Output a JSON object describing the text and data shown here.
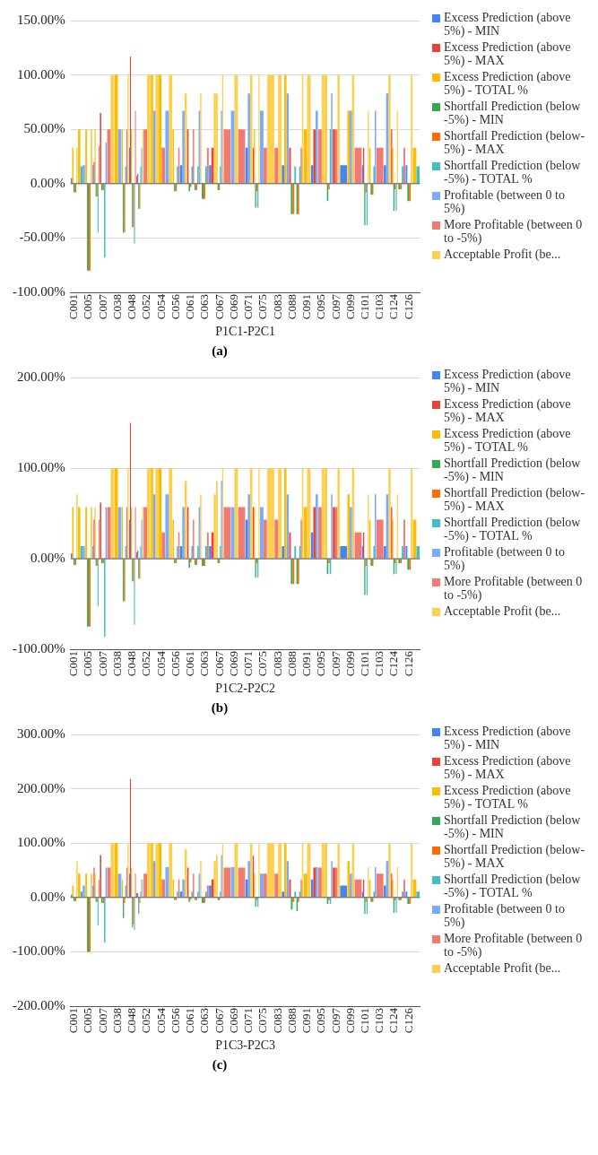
{
  "chart_data": [
    {
      "type": "bar",
      "xlabel": "P1C1-P2C1",
      "annotations": [
        "(a)"
      ],
      "legend": "right",
      "grid": "y",
      "ylim": [
        -100,
        150
      ],
      "yticks": [
        {
          "value": -100,
          "label": "-100.00%"
        },
        {
          "value": -50,
          "label": "-50.00%"
        },
        {
          "value": 0,
          "label": "0.00%"
        },
        {
          "value": 50,
          "label": "50.00%"
        },
        {
          "value": 100,
          "label": "100.00%"
        },
        {
          "value": 150,
          "label": "150.00%"
        }
      ],
      "categories": [
        "C001",
        null,
        "C005",
        null,
        "C007",
        null,
        "C038",
        null,
        "C048",
        null,
        "C052",
        null,
        "C054",
        null,
        "C056",
        null,
        "C061",
        null,
        "C063",
        null,
        "C067",
        null,
        "C069",
        null,
        "C071",
        null,
        "C075",
        null,
        "C083",
        null,
        "C088",
        null,
        "C091",
        null,
        "C095",
        null,
        "C097",
        null,
        "C099",
        null,
        "C101",
        null,
        "C103",
        null,
        "C124",
        null,
        "C126",
        null
      ],
      "series": [
        {
          "name": "Excess Prediction (above 5%) - MIN",
          "color": "#4285f4",
          "values": [
            5,
            null,
            null,
            17,
            null,
            null,
            null,
            null,
            33,
            7,
            null,
            null,
            null,
            null,
            null,
            17,
            null,
            null,
            null,
            17,
            null,
            null,
            null,
            null,
            33,
            null,
            null,
            null,
            null,
            17,
            null,
            null,
            null,
            17,
            null,
            null,
            null,
            17,
            null,
            null,
            17,
            null,
            null,
            17,
            null,
            null,
            17,
            null
          ]
        },
        {
          "name": "Excess Prediction (above 5%) - MAX",
          "color": "#ea4335",
          "values": [
            null,
            null,
            null,
            20,
            65,
            null,
            null,
            null,
            117,
            9,
            null,
            null,
            null,
            null,
            null,
            null,
            50,
            null,
            null,
            33,
            null,
            null,
            null,
            null,
            null,
            33,
            null,
            null,
            null,
            null,
            33,
            null,
            null,
            50,
            null,
            null,
            50,
            null,
            null,
            null,
            33,
            null,
            null,
            null,
            50,
            null,
            null,
            null
          ]
        },
        {
          "name": "Excess Prediction (above 5%) - TOTAL %",
          "color": "#fbbc04",
          "values": [
            33,
            50,
            50,
            50,
            null,
            null,
            100,
            50,
            50,
            null,
            null,
            100,
            100,
            null,
            50,
            null,
            null,
            null,
            null,
            null,
            83,
            null,
            null,
            null,
            null,
            50,
            null,
            null,
            null,
            100,
            null,
            null,
            50,
            null,
            null,
            100,
            null,
            null,
            67,
            null,
            null,
            33,
            null,
            null,
            33,
            null,
            null,
            33
          ]
        },
        {
          "name": "Shortfall Prediction (below -5%) - MIN",
          "color": "#34a853",
          "values": [
            -8,
            null,
            -80,
            -12,
            -6,
            null,
            null,
            -45,
            -40,
            -23,
            null,
            null,
            null,
            null,
            -7,
            null,
            -7,
            -6,
            -14,
            null,
            -6,
            null,
            null,
            null,
            null,
            -22,
            null,
            null,
            null,
            null,
            -28,
            -28,
            null,
            null,
            null,
            -16,
            null,
            null,
            null,
            null,
            -38,
            -10,
            null,
            null,
            -25,
            -5,
            -16,
            null
          ]
        },
        {
          "name": "Shortfall Prediction (below-5%) - MAX",
          "color": "#ff6d01",
          "values": [
            -8,
            null,
            -80,
            -12,
            -6,
            null,
            null,
            -45,
            -40,
            -23,
            null,
            null,
            null,
            null,
            -7,
            null,
            -3,
            -6,
            -14,
            null,
            -6,
            null,
            null,
            null,
            null,
            -7,
            null,
            null,
            null,
            null,
            -28,
            -28,
            null,
            null,
            null,
            -5,
            null,
            null,
            null,
            null,
            -8,
            -10,
            null,
            null,
            -5,
            -5,
            -16,
            null
          ]
        },
        {
          "name": "Shortfall Prediction (below -5%) - TOTAL %",
          "color": "#46bdc6",
          "values": [
            null,
            16,
            null,
            -45,
            -68,
            null,
            null,
            16,
            -55,
            16,
            null,
            null,
            null,
            null,
            16,
            null,
            16,
            16,
            16,
            null,
            16,
            null,
            null,
            null,
            null,
            -22,
            null,
            null,
            null,
            null,
            16,
            16,
            null,
            null,
            null,
            50,
            null,
            null,
            null,
            null,
            -38,
            16,
            null,
            null,
            -25,
            16,
            null,
            16
          ]
        },
        {
          "name": "Profitable (between 0 to 5%)",
          "color": "#7baaf7",
          "values": [
            null,
            17,
            null,
            null,
            38,
            null,
            50,
            null,
            null,
            33,
            null,
            67,
            null,
            67,
            null,
            67,
            null,
            67,
            null,
            null,
            67,
            null,
            67,
            null,
            83,
            null,
            67,
            null,
            null,
            83,
            null,
            null,
            null,
            67,
            null,
            83,
            null,
            null,
            67,
            null,
            null,
            67,
            null,
            83,
            null,
            null,
            null,
            null
          ]
        },
        {
          "name": "More Profitable (between 0 to -5%)",
          "color": "#f07b72",
          "values": [
            null,
            null,
            null,
            35,
            null,
            50,
            null,
            50,
            67,
            null,
            50,
            null,
            33,
            null,
            33,
            null,
            50,
            null,
            33,
            null,
            null,
            50,
            null,
            50,
            null,
            null,
            33,
            null,
            33,
            null,
            null,
            33,
            null,
            null,
            50,
            null,
            50,
            null,
            null,
            33,
            null,
            null,
            33,
            null,
            null,
            33,
            null,
            null
          ]
        },
        {
          "name": "Acceptable Profit (be...",
          "color": "#fcd04f",
          "values": [
            33,
            null,
            50,
            null,
            null,
            100,
            null,
            100,
            null,
            50,
            100,
            100,
            null,
            100,
            null,
            83,
            null,
            83,
            null,
            83,
            100,
            null,
            100,
            null,
            100,
            100,
            null,
            100,
            100,
            null,
            null,
            100,
            100,
            null,
            100,
            null,
            100,
            null,
            100,
            null,
            67,
            null,
            null,
            100,
            67,
            null,
            100,
            null
          ]
        }
      ]
    },
    {
      "type": "bar",
      "xlabel": "P1C2-P2C2",
      "annotations": [
        "(b)"
      ],
      "legend": "right",
      "grid": "y",
      "ylim": [
        -100,
        200
      ],
      "yticks": [
        {
          "value": -100,
          "label": "-100.00%"
        },
        {
          "value": 0,
          "label": "0.00%"
        },
        {
          "value": 100,
          "label": "100.00%"
        },
        {
          "value": 200,
          "label": "200.00%"
        }
      ],
      "categories": [
        "C001",
        null,
        "C005",
        null,
        "C007",
        null,
        "C038",
        null,
        "C048",
        null,
        "C052",
        null,
        "C054",
        null,
        "C056",
        null,
        "C061",
        null,
        "C063",
        null,
        "C067",
        null,
        "C069",
        null,
        "C071",
        null,
        "C075",
        null,
        "C083",
        null,
        "C088",
        null,
        "C091",
        null,
        "C095",
        null,
        "C097",
        null,
        "C099",
        null,
        "C101",
        null,
        "C103",
        null,
        "C124",
        null,
        "C126",
        null
      ],
      "series": [
        {
          "name": "Excess Prediction (above 5%) - MIN",
          "color": "#4285f4",
          "values": [
            6,
            null,
            null,
            14,
            null,
            null,
            null,
            null,
            43,
            7,
            null,
            null,
            null,
            null,
            null,
            14,
            null,
            null,
            null,
            14,
            null,
            null,
            null,
            null,
            43,
            null,
            null,
            null,
            null,
            14,
            null,
            null,
            null,
            29,
            null,
            null,
            null,
            14,
            null,
            null,
            14,
            null,
            null,
            14,
            null,
            null,
            14,
            null
          ]
        },
        {
          "name": "Excess Prediction (above 5%) - MAX",
          "color": "#ea4335",
          "values": [
            null,
            null,
            null,
            43,
            62,
            null,
            null,
            null,
            150,
            9,
            null,
            null,
            null,
            null,
            null,
            null,
            57,
            null,
            null,
            29,
            null,
            null,
            null,
            null,
            null,
            57,
            null,
            null,
            null,
            null,
            29,
            null,
            null,
            57,
            null,
            null,
            57,
            null,
            null,
            null,
            29,
            null,
            null,
            null,
            57,
            null,
            null,
            null
          ]
        },
        {
          "name": "Excess Prediction (above 5%) - TOTAL %",
          "color": "#fbbc04",
          "values": [
            57,
            57,
            57,
            57,
            null,
            null,
            100,
            57,
            57,
            null,
            null,
            100,
            100,
            null,
            43,
            null,
            null,
            null,
            null,
            null,
            86,
            null,
            null,
            null,
            null,
            57,
            null,
            null,
            null,
            100,
            null,
            null,
            57,
            null,
            null,
            100,
            null,
            null,
            71,
            null,
            null,
            43,
            null,
            null,
            43,
            null,
            null,
            43
          ]
        },
        {
          "name": "Shortfall Prediction (below -5%) - MIN",
          "color": "#34a853",
          "values": [
            -7,
            null,
            -75,
            -8,
            -5,
            null,
            null,
            -47,
            -25,
            -22,
            null,
            null,
            null,
            null,
            -5,
            null,
            -10,
            -7,
            -8,
            null,
            -5,
            null,
            null,
            null,
            null,
            -21,
            null,
            null,
            null,
            null,
            -28,
            -28,
            null,
            null,
            null,
            -17,
            null,
            null,
            null,
            null,
            -40,
            -8,
            null,
            null,
            -17,
            -5,
            -12,
            null
          ]
        },
        {
          "name": "Shortfall Prediction (below-5%) - MAX",
          "color": "#ff6d01",
          "values": [
            -7,
            null,
            -75,
            -8,
            -5,
            null,
            null,
            -47,
            -25,
            -22,
            null,
            null,
            null,
            null,
            -5,
            null,
            -4,
            -7,
            -8,
            null,
            -5,
            null,
            null,
            null,
            null,
            -5,
            null,
            null,
            null,
            null,
            -28,
            -28,
            null,
            null,
            null,
            -5,
            null,
            null,
            null,
            null,
            -8,
            -8,
            null,
            null,
            -5,
            -5,
            -12,
            null
          ]
        },
        {
          "name": "Shortfall Prediction (below -5%) - TOTAL %",
          "color": "#46bdc6",
          "values": [
            null,
            14,
            null,
            -53,
            -86,
            null,
            null,
            14,
            -73,
            14,
            null,
            null,
            null,
            null,
            14,
            null,
            14,
            14,
            14,
            null,
            14,
            null,
            null,
            null,
            null,
            -21,
            null,
            null,
            null,
            null,
            14,
            14,
            null,
            null,
            null,
            -17,
            null,
            null,
            null,
            null,
            -40,
            14,
            null,
            null,
            -17,
            14,
            null,
            14
          ]
        },
        {
          "name": "Profitable (between 0 to 5%)",
          "color": "#7baaf7",
          "values": [
            null,
            14,
            null,
            null,
            57,
            null,
            57,
            null,
            null,
            43,
            null,
            71,
            null,
            71,
            null,
            57,
            null,
            57,
            null,
            null,
            86,
            null,
            57,
            null,
            71,
            null,
            57,
            null,
            null,
            71,
            null,
            null,
            null,
            71,
            null,
            71,
            null,
            null,
            57,
            null,
            null,
            71,
            null,
            71,
            null,
            null,
            null,
            null
          ]
        },
        {
          "name": "More Profitable (between 0 to -5%)",
          "color": "#f07b72",
          "values": [
            null,
            null,
            null,
            43,
            null,
            57,
            null,
            57,
            57,
            null,
            57,
            null,
            29,
            null,
            29,
            null,
            43,
            null,
            29,
            null,
            null,
            57,
            null,
            57,
            null,
            null,
            43,
            null,
            43,
            null,
            null,
            43,
            null,
            null,
            57,
            null,
            57,
            null,
            null,
            29,
            null,
            null,
            43,
            null,
            null,
            43,
            null,
            null
          ]
        },
        {
          "name": "Acceptable Profit (be...",
          "color": "#fcd04f",
          "values": [
            71,
            null,
            57,
            null,
            null,
            100,
            null,
            100,
            null,
            57,
            100,
            100,
            null,
            100,
            null,
            86,
            null,
            71,
            null,
            71,
            100,
            null,
            100,
            null,
            100,
            100,
            null,
            100,
            100,
            null,
            null,
            100,
            100,
            null,
            100,
            null,
            100,
            null,
            100,
            null,
            71,
            null,
            null,
            100,
            71,
            null,
            100,
            null
          ]
        }
      ]
    },
    {
      "type": "bar",
      "xlabel": "P1C3-P2C3",
      "annotations": [
        "(c)"
      ],
      "legend": "right",
      "grid": "y",
      "ylim": [
        -200,
        300
      ],
      "yticks": [
        {
          "value": -200,
          "label": "-200.00%"
        },
        {
          "value": -100,
          "label": "-100.00%"
        },
        {
          "value": 0,
          "label": "0.00%"
        },
        {
          "value": 100,
          "label": "100.00%"
        },
        {
          "value": 200,
          "label": "200.00%"
        },
        {
          "value": 300,
          "label": "300.00%"
        }
      ],
      "categories": [
        "C001",
        null,
        "C005",
        null,
        "C007",
        null,
        "C038",
        null,
        "C048",
        null,
        "C052",
        null,
        "C054",
        null,
        "C056",
        null,
        "C061",
        null,
        "C063",
        null,
        "C067",
        null,
        "C069",
        null,
        "C071",
        null,
        "C075",
        null,
        "C083",
        null,
        "C088",
        null,
        "C091",
        null,
        "C095",
        null,
        "C097",
        null,
        "C099",
        null,
        "C101",
        null,
        "C103",
        null,
        "C124",
        null,
        "C126",
        null
      ],
      "series": [
        {
          "name": "Excess Prediction (above 5%) - MIN",
          "color": "#4285f4",
          "values": [
            5,
            null,
            null,
            22,
            null,
            null,
            null,
            null,
            44,
            8,
            null,
            null,
            null,
            null,
            null,
            11,
            null,
            null,
            null,
            22,
            null,
            null,
            null,
            null,
            33,
            null,
            null,
            null,
            null,
            11,
            null,
            null,
            null,
            33,
            null,
            null,
            null,
            22,
            null,
            null,
            11,
            null,
            null,
            22,
            null,
            null,
            11,
            null
          ]
        },
        {
          "name": "Excess Prediction (above 5%) - MAX",
          "color": "#ea4335",
          "values": [
            null,
            null,
            null,
            55,
            78,
            null,
            null,
            null,
            218,
            8,
            null,
            null,
            null,
            null,
            null,
            null,
            55,
            null,
            null,
            33,
            null,
            null,
            null,
            null,
            null,
            77,
            null,
            null,
            null,
            null,
            33,
            null,
            null,
            55,
            null,
            null,
            55,
            null,
            null,
            null,
            33,
            null,
            null,
            null,
            44,
            null,
            null,
            null
          ]
        },
        {
          "name": "Excess Prediction (above 5%) - TOTAL %",
          "color": "#fbbc04",
          "values": [
            22,
            44,
            44,
            44,
            null,
            null,
            100,
            33,
            55,
            null,
            null,
            100,
            100,
            null,
            33,
            null,
            null,
            null,
            null,
            null,
            78,
            null,
            null,
            null,
            null,
            44,
            null,
            null,
            null,
            100,
            null,
            null,
            44,
            null,
            null,
            100,
            null,
            null,
            67,
            null,
            null,
            33,
            null,
            null,
            33,
            null,
            null,
            33
          ]
        },
        {
          "name": "Shortfall Prediction (below -5%) - MIN",
          "color": "#34a853",
          "values": [
            -7,
            null,
            -100,
            -8,
            -10,
            null,
            null,
            -38,
            -55,
            -30,
            null,
            null,
            null,
            null,
            -5,
            null,
            -8,
            -5,
            -10,
            null,
            -5,
            null,
            null,
            null,
            null,
            -17,
            null,
            null,
            null,
            null,
            -22,
            -25,
            null,
            null,
            null,
            -12,
            null,
            null,
            null,
            null,
            -30,
            -8,
            null,
            null,
            -28,
            -5,
            -12,
            null
          ]
        },
        {
          "name": "Shortfall Prediction (below-5%) - MAX",
          "color": "#ff6d01",
          "values": [
            -7,
            null,
            -100,
            -8,
            -10,
            null,
            null,
            -10,
            -50,
            -10,
            null,
            null,
            null,
            null,
            -5,
            null,
            -4,
            -5,
            -10,
            null,
            -5,
            null,
            null,
            null,
            null,
            -5,
            null,
            null,
            null,
            null,
            -8,
            -8,
            null,
            null,
            null,
            -5,
            null,
            null,
            null,
            null,
            -8,
            -8,
            null,
            null,
            -5,
            -5,
            -12,
            null
          ]
        },
        {
          "name": "Shortfall Prediction (below -5%) - TOTAL %",
          "color": "#46bdc6",
          "values": [
            null,
            11,
            null,
            -52,
            -83,
            null,
            null,
            22,
            -60,
            11,
            null,
            null,
            null,
            null,
            11,
            null,
            11,
            11,
            11,
            null,
            11,
            null,
            null,
            null,
            null,
            -17,
            null,
            null,
            null,
            null,
            11,
            11,
            null,
            null,
            null,
            -12,
            null,
            null,
            null,
            null,
            -30,
            11,
            null,
            null,
            -28,
            11,
            null,
            11
          ]
        },
        {
          "name": "Profitable (between 0 to 5%)",
          "color": "#7baaf7",
          "values": [
            null,
            22,
            null,
            null,
            55,
            null,
            44,
            null,
            null,
            33,
            null,
            67,
            null,
            56,
            null,
            33,
            null,
            44,
            null,
            null,
            78,
            null,
            56,
            null,
            67,
            null,
            44,
            null,
            null,
            67,
            null,
            null,
            null,
            56,
            null,
            67,
            null,
            null,
            44,
            null,
            null,
            56,
            null,
            67,
            null,
            null,
            null,
            null
          ]
        },
        {
          "name": "More Profitable (between 0 to -5%)",
          "color": "#f07b72",
          "values": [
            null,
            null,
            null,
            33,
            null,
            55,
            null,
            55,
            44,
            null,
            44,
            null,
            33,
            null,
            33,
            null,
            44,
            null,
            22,
            null,
            null,
            55,
            null,
            55,
            null,
            null,
            44,
            null,
            44,
            null,
            null,
            33,
            null,
            null,
            55,
            null,
            55,
            null,
            null,
            33,
            null,
            null,
            44,
            null,
            null,
            33,
            null,
            null
          ]
        },
        {
          "name": "Acceptable Profit (be...",
          "color": "#fcd04f",
          "values": [
            67,
            null,
            44,
            null,
            null,
            100,
            null,
            100,
            null,
            33,
            100,
            100,
            null,
            100,
            null,
            89,
            null,
            67,
            null,
            67,
            100,
            null,
            100,
            null,
            100,
            100,
            null,
            100,
            100,
            null,
            null,
            100,
            100,
            null,
            100,
            null,
            100,
            null,
            100,
            null,
            56,
            null,
            null,
            100,
            56,
            null,
            100,
            null
          ]
        }
      ]
    }
  ]
}
